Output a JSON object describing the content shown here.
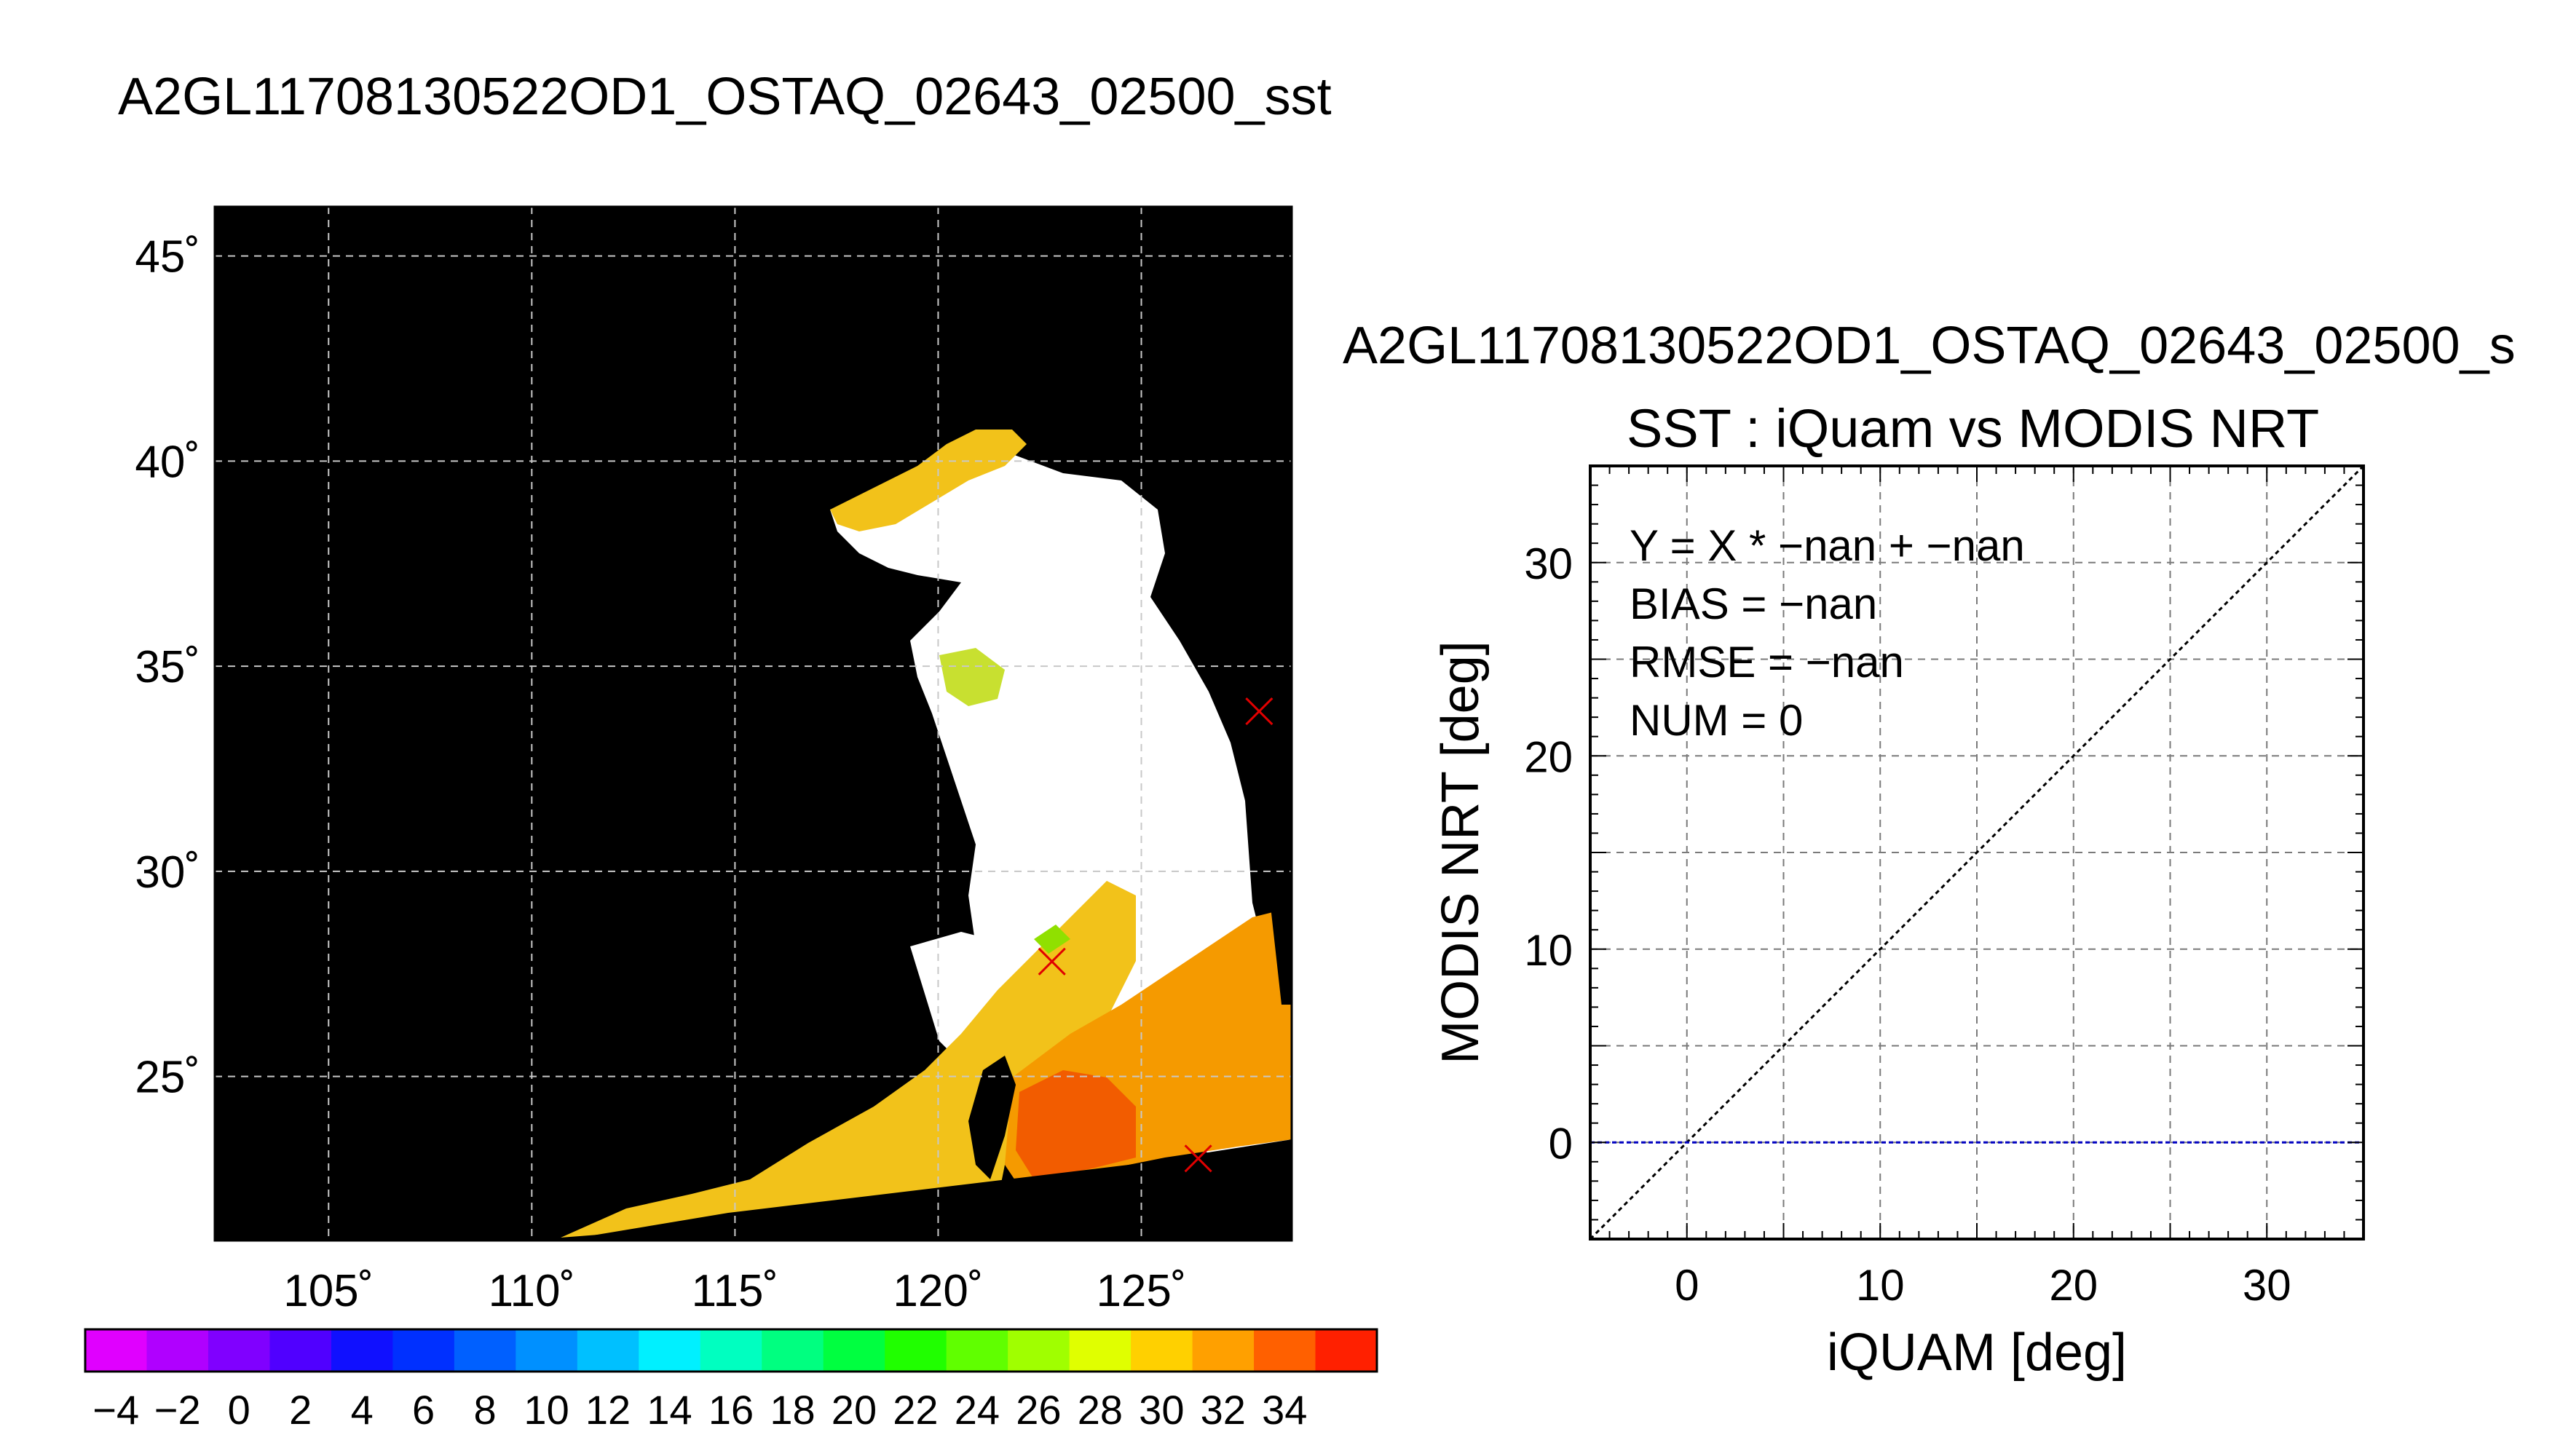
{
  "title": "A2GL11708130522OD1_OSTAQ_02643_02500_sst",
  "map": {
    "lat_ticks": [
      {
        "value": 45,
        "label": "45˚"
      },
      {
        "value": 40,
        "label": "40˚"
      },
      {
        "value": 35,
        "label": "35˚"
      },
      {
        "value": 30,
        "label": "30˚"
      },
      {
        "value": 25,
        "label": "25˚"
      }
    ],
    "lon_ticks": [
      {
        "value": 105,
        "label": "105˚"
      },
      {
        "value": 110,
        "label": "110˚"
      },
      {
        "value": 115,
        "label": "115˚"
      },
      {
        "value": 120,
        "label": "120˚"
      },
      {
        "value": 125,
        "label": "125˚"
      }
    ],
    "lon_range": [
      102.2,
      128.7
    ],
    "lat_range": [
      21.0,
      46.2
    ],
    "matchup_markers": [
      {
        "lon": 127.9,
        "lat": 33.9
      },
      {
        "lon": 122.8,
        "lat": 27.8
      },
      {
        "lon": 126.4,
        "lat": 23.0
      }
    ],
    "colors": {
      "land": "#000000",
      "cloud": "#ffffff",
      "marker": "#e00000",
      "grid": "#c8c8c8"
    }
  },
  "colorbar": {
    "labels": [
      "−4",
      "−2",
      "0",
      "2",
      "4",
      "6",
      "8",
      "10",
      "12",
      "14",
      "16",
      "18",
      "20",
      "22",
      "24",
      "26",
      "28",
      "30",
      "32",
      "34"
    ],
    "colors": [
      "#e000ff",
      "#b000ff",
      "#8000ff",
      "#5000ff",
      "#1010ff",
      "#0030ff",
      "#0060ff",
      "#0090ff",
      "#00c0ff",
      "#00f0ff",
      "#00ffc0",
      "#00ff80",
      "#00ff40",
      "#20ff00",
      "#60ff00",
      "#a0ff00",
      "#e0ff00",
      "#ffd000",
      "#ffa000",
      "#ff6000",
      "#ff2000"
    ]
  },
  "scatter": {
    "title": "A2GL11708130522OD1_OSTAQ_02643_02500_s",
    "subtitle": "SST : iQuam vs MODIS NRT",
    "stats": [
      "Y = X * −nan + −nan",
      "BIAS = −nan",
      "RMSE = −nan",
      "NUM = 0"
    ],
    "colors": {
      "diag": "#000000",
      "zero_line": "#0000c0",
      "grid": "#7a7a7a"
    }
  },
  "chart_data": {
    "type": "scatter",
    "title": "SST : iQuam vs MODIS NRT",
    "xlabel": "iQUAM [deg]",
    "ylabel": "MODIS NRT [deg]",
    "xlim": [
      -5,
      35
    ],
    "ylim": [
      -5,
      35
    ],
    "xticks": [
      0,
      10,
      20,
      30
    ],
    "yticks": [
      0,
      10,
      20,
      30
    ],
    "grid": true,
    "points": [],
    "reference_lines": [
      {
        "type": "identity",
        "from": [
          -5,
          -5
        ],
        "to": [
          35,
          35
        ]
      },
      {
        "type": "horizontal",
        "y": 0
      }
    ]
  }
}
